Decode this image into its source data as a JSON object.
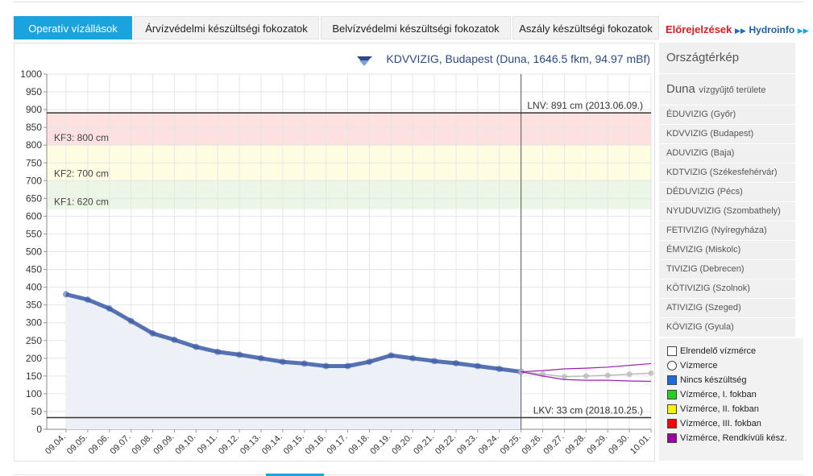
{
  "tabs": [
    "Operatív vízállások",
    "Árvízvédelmi készültségi fokozatok",
    "Belvízvédelmi készültségi fokozatok",
    "Aszály készültségi fokozatok"
  ],
  "forecast_link": "Előrejelzések",
  "hydroinfo_link": "Hydroinfo",
  "chart_data": {
    "type": "line",
    "title": "KDVVIZIG, Budapest (Duna, 1646.5 fkm, 94.97 mBf)",
    "categories": [
      "09.04.",
      "09.05.",
      "09.06.",
      "09.07.",
      "09.08.",
      "09.09.",
      "09.10.",
      "09.11.",
      "09.12.",
      "09.13.",
      "09.14.",
      "09.15.",
      "09.16.",
      "09.17.",
      "09.18.",
      "09.19.",
      "09.20.",
      "09.21.",
      "09.22.",
      "09.23.",
      "09.24.",
      "09.25.",
      "09.26.",
      "09.27.",
      "09.28.",
      "09.29.",
      "09.30.",
      "10.01."
    ],
    "series": [
      {
        "color": "#3a5aa6",
        "values": [
          380,
          365,
          340,
          305,
          270,
          252,
          232,
          218,
          210,
          200,
          190,
          185,
          178,
          178,
          190,
          208,
          200,
          192,
          186,
          178,
          170,
          162,
          null,
          null,
          null,
          null,
          null,
          null
        ]
      },
      {
        "color": "#bbbbbb",
        "values": [
          null,
          null,
          null,
          null,
          null,
          null,
          null,
          null,
          null,
          null,
          null,
          null,
          null,
          null,
          null,
          null,
          null,
          null,
          null,
          null,
          null,
          162,
          155,
          148,
          150,
          152,
          155,
          158
        ]
      },
      {
        "color": "#9b1fb5",
        "values": [
          null,
          null,
          null,
          null,
          null,
          null,
          null,
          null,
          null,
          null,
          null,
          null,
          null,
          null,
          null,
          null,
          null,
          null,
          null,
          null,
          null,
          162,
          165,
          170,
          172,
          175,
          180,
          185
        ]
      },
      {
        "color": "#9b1fb5",
        "values": [
          null,
          null,
          null,
          null,
          null,
          null,
          null,
          null,
          null,
          null,
          null,
          null,
          null,
          null,
          null,
          null,
          null,
          null,
          null,
          null,
          null,
          162,
          150,
          140,
          138,
          138,
          136,
          135
        ]
      }
    ],
    "bands": [
      {
        "label": "KF3: 800 cm",
        "from": 800,
        "to": 891,
        "color": "#fde0e0"
      },
      {
        "label": "KF2: 700 cm",
        "from": 700,
        "to": 800,
        "color": "#fefde2"
      },
      {
        "label": "KF1: 620 cm",
        "from": 620,
        "to": 700,
        "color": "#ebf6e6"
      }
    ],
    "reference_lines": [
      {
        "label": "LNV: 891 cm (2013.06.09.)",
        "value": 891
      },
      {
        "label": "LKV: 33 cm (2018.10.25.)",
        "value": 33
      }
    ],
    "ylim": [
      0,
      1000
    ],
    "yticks": [
      0,
      50,
      100,
      150,
      200,
      250,
      300,
      350,
      400,
      450,
      500,
      550,
      600,
      650,
      700,
      750,
      800,
      850,
      900,
      950,
      1000
    ],
    "grid": true
  },
  "sidebar": {
    "map_link": "Országtérkép",
    "basin": "Duna",
    "basin_suffix": "vízgyűjtő területe",
    "items": [
      "ÉDUVIZIG (Győr)",
      "KDVVIZIG (Budapest)",
      "ADUVIZIG (Baja)",
      "KDTVIZIG (Székesfehérvár)",
      "DÉDUVIZIG (Pécs)",
      "NYUDUVIZIG (Szombathely)",
      "FETIVIZIG (Nyíregyháza)",
      "ÉMVIZIG (Miskolc)",
      "TIVIZIG (Debrecen)",
      "KÖTIVIZIG (Szolnok)",
      "ATIVIZIG (Szeged)",
      "KÖVIZIG (Gyula)"
    ]
  },
  "legend": {
    "items": [
      {
        "label": "Elrendelő vízmérce",
        "shape": "square",
        "color": "#ffffff"
      },
      {
        "label": "Vízmerce",
        "shape": "circle",
        "color": "#ffffff"
      },
      {
        "label": "Nincs készültség",
        "shape": "square",
        "color": "#1a6be0"
      },
      {
        "label": "Vízmérce, I. fokban",
        "shape": "square",
        "color": "#22d022"
      },
      {
        "label": "Vízmérce, II. fokban",
        "shape": "square",
        "color": "#f5f500"
      },
      {
        "label": "Vízmérce, III. fokban",
        "shape": "square",
        "color": "#ff0000"
      },
      {
        "label": "Vízmérce, Rendkívüli kész.",
        "shape": "square",
        "color": "#a000a0"
      }
    ]
  }
}
